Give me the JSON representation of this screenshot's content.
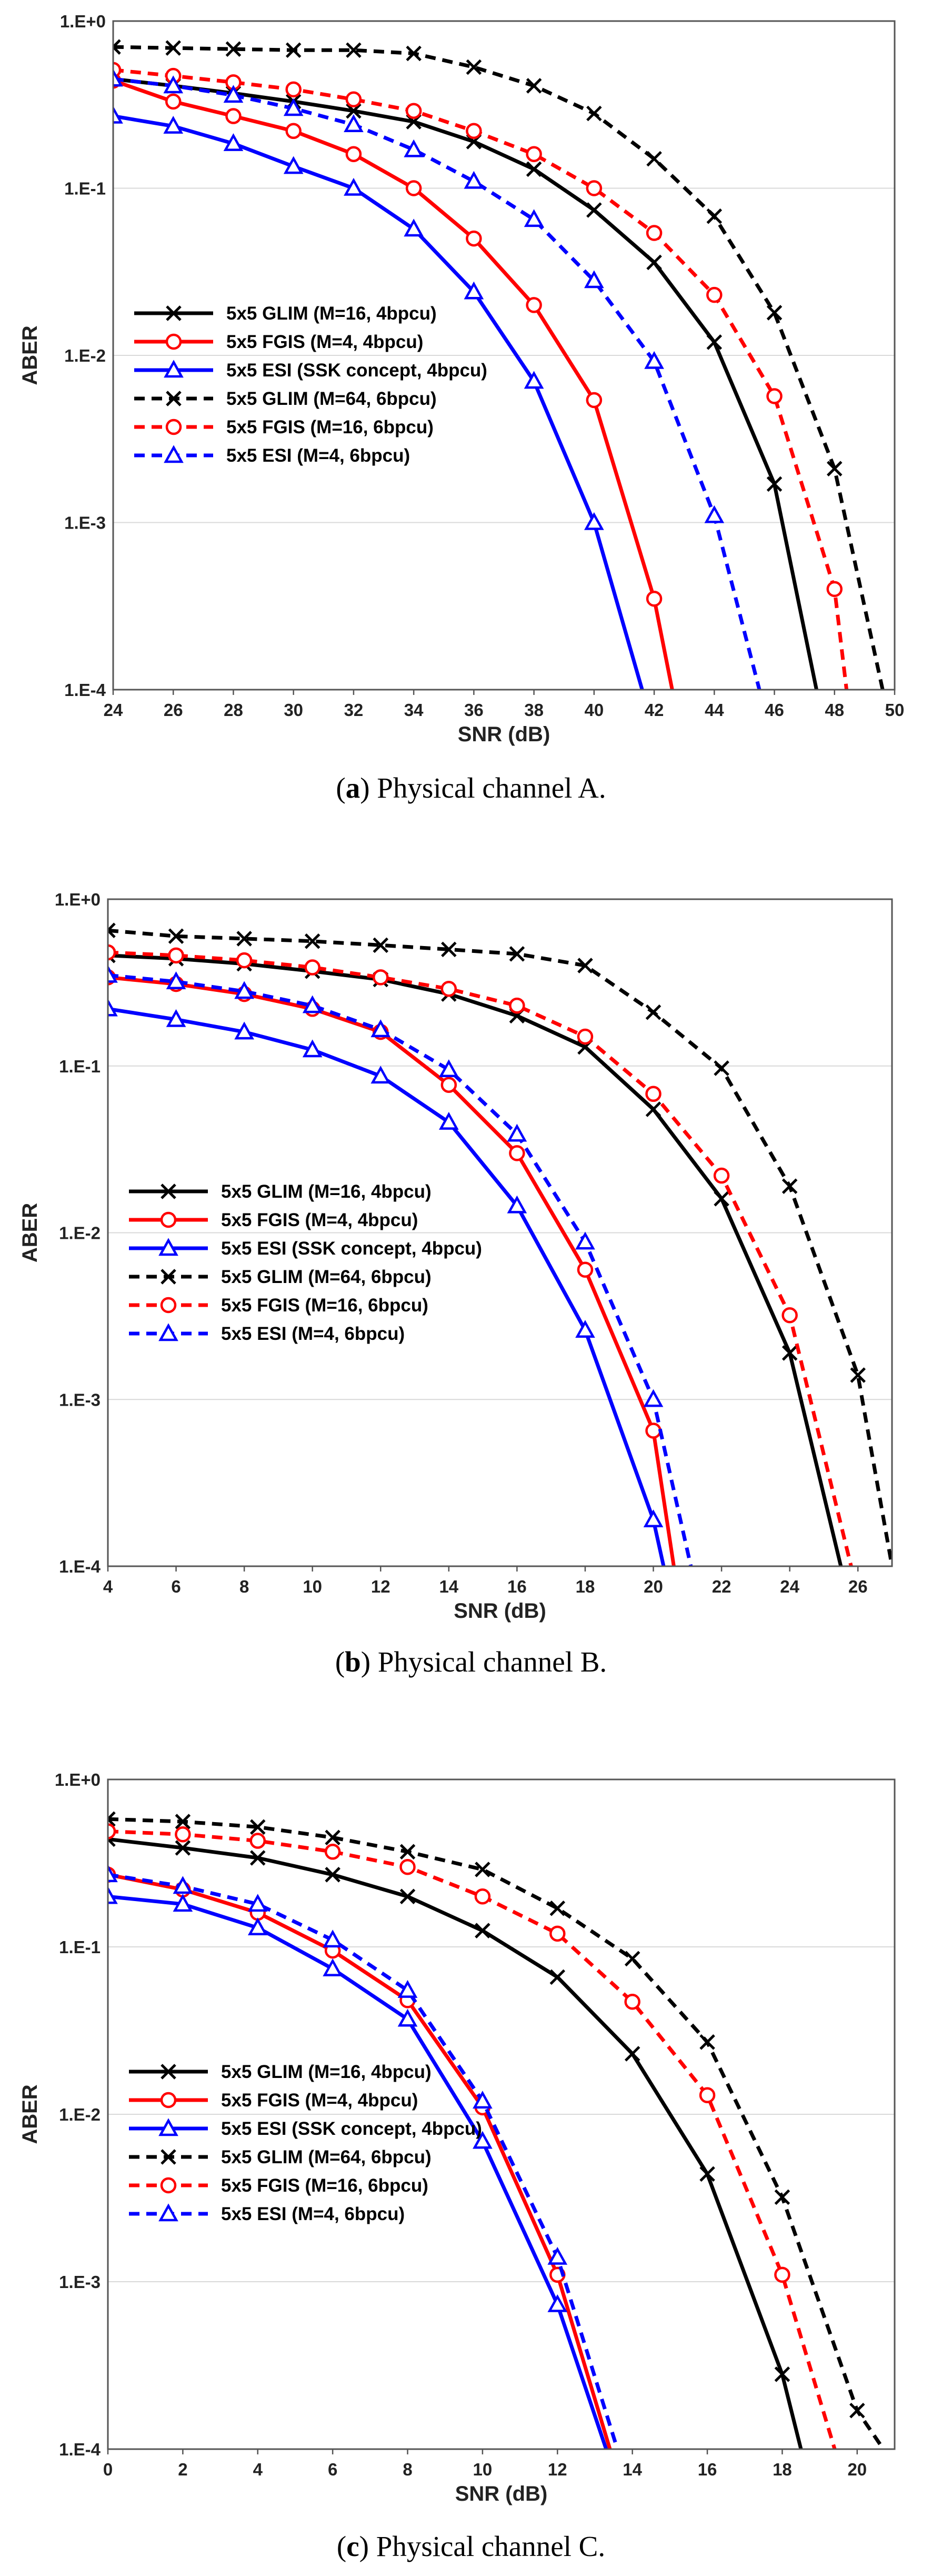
{
  "chart_data": [
    {
      "type": "line",
      "yscale": "log",
      "caption_letter": "a",
      "caption_text": "Physical channel A.",
      "xlabel": "SNR (dB)",
      "ylabel": "ABER",
      "xlim": [
        24,
        50
      ],
      "xticks": [
        24,
        26,
        28,
        30,
        32,
        34,
        36,
        38,
        40,
        42,
        44,
        46,
        48,
        50
      ],
      "ylim": [
        0.0001,
        1
      ],
      "yticks": [
        {
          "v": 1,
          "label": "1.E+0"
        },
        {
          "v": 0.1,
          "label": "1.E-1"
        },
        {
          "v": 0.01,
          "label": "1.E-2"
        },
        {
          "v": 0.001,
          "label": "1.E-3"
        },
        {
          "v": 0.0001,
          "label": "1.E-4"
        }
      ],
      "legend_position": "bottom-left",
      "series": [
        {
          "name": "5x5 GLIM  (M=16, 4bpcu)",
          "color": "#000000",
          "dash": false,
          "marker": "x",
          "points": [
            [
              24,
              0.45
            ],
            [
              26,
              0.41
            ],
            [
              28,
              0.37
            ],
            [
              30,
              0.33
            ],
            [
              32,
              0.29
            ],
            [
              34,
              0.25
            ],
            [
              36,
              0.19
            ],
            [
              38,
              0.13
            ],
            [
              40,
              0.074
            ],
            [
              42,
              0.036
            ],
            [
              44,
              0.012
            ],
            [
              46,
              0.0017
            ],
            [
              47.4,
              0.0001
            ]
          ]
        },
        {
          "name": "5x5 FGIS (M=4, 4bpcu)",
          "color": "#ff0000",
          "dash": false,
          "marker": "o",
          "points": [
            [
              24,
              0.44
            ],
            [
              26,
              0.33
            ],
            [
              28,
              0.27
            ],
            [
              30,
              0.22
            ],
            [
              32,
              0.16
            ],
            [
              34,
              0.1
            ],
            [
              36,
              0.05
            ],
            [
              38,
              0.02
            ],
            [
              40,
              0.0054
            ],
            [
              42,
              0.00035
            ],
            [
              42.6,
              0.0001
            ]
          ]
        },
        {
          "name": "5x5 ESI (SSK concept, 4bpcu)",
          "color": "#0000ff",
          "dash": false,
          "marker": "triangle",
          "points": [
            [
              24,
              0.27
            ],
            [
              26,
              0.235
            ],
            [
              28,
              0.185
            ],
            [
              30,
              0.135
            ],
            [
              32,
              0.1
            ],
            [
              34,
              0.057
            ],
            [
              36,
              0.024
            ],
            [
              38,
              0.007
            ],
            [
              40,
              0.001
            ],
            [
              41.6,
              0.0001
            ]
          ]
        },
        {
          "name": "5x5 GLIM  (M=64, 6bpcu)",
          "color": "#000000",
          "dash": true,
          "marker": "x",
          "points": [
            [
              24,
              0.7
            ],
            [
              26,
              0.69
            ],
            [
              28,
              0.68
            ],
            [
              30,
              0.67
            ],
            [
              32,
              0.67
            ],
            [
              34,
              0.64
            ],
            [
              36,
              0.53
            ],
            [
              38,
              0.41
            ],
            [
              40,
              0.28
            ],
            [
              42,
              0.15
            ],
            [
              44,
              0.068
            ],
            [
              46,
              0.018
            ],
            [
              48,
              0.0021
            ],
            [
              49.6,
              0.0001
            ]
          ]
        },
        {
          "name": "5x5 FGIS (M=16, 6bpcu)",
          "color": "#ff0000",
          "dash": true,
          "marker": "o",
          "points": [
            [
              24,
              0.51
            ],
            [
              26,
              0.47
            ],
            [
              28,
              0.43
            ],
            [
              30,
              0.39
            ],
            [
              32,
              0.34
            ],
            [
              34,
              0.29
            ],
            [
              36,
              0.22
            ],
            [
              38,
              0.16
            ],
            [
              40,
              0.1
            ],
            [
              42,
              0.054
            ],
            [
              44,
              0.023
            ],
            [
              46,
              0.0057
            ],
            [
              48,
              0.0004
            ],
            [
              48.4,
              0.0001
            ]
          ]
        },
        {
          "name": "5x5 ESI (M=4, 6bpcu)",
          "color": "#0000ff",
          "dash": true,
          "marker": "triangle",
          "points": [
            [
              24,
              0.45
            ],
            [
              26,
              0.41
            ],
            [
              28,
              0.36
            ],
            [
              30,
              0.3
            ],
            [
              32,
              0.24
            ],
            [
              34,
              0.17
            ],
            [
              36,
              0.11
            ],
            [
              38,
              0.065
            ],
            [
              40,
              0.028
            ],
            [
              42,
              0.0092
            ],
            [
              44,
              0.0011
            ],
            [
              45.5,
              0.0001
            ]
          ]
        }
      ]
    },
    {
      "type": "line",
      "yscale": "log",
      "caption_letter": "b",
      "caption_text": "Physical channel B.",
      "xlabel": "SNR (dB)",
      "ylabel": "ABER",
      "xlim": [
        4,
        27
      ],
      "xticks": [
        4,
        6,
        8,
        10,
        12,
        14,
        16,
        18,
        20,
        22,
        24,
        26
      ],
      "ylim": [
        0.0001,
        1
      ],
      "yticks": [
        {
          "v": 1,
          "label": "1.E+0"
        },
        {
          "v": 0.1,
          "label": "1.E-1"
        },
        {
          "v": 0.01,
          "label": "1.E-2"
        },
        {
          "v": 0.001,
          "label": "1.E-3"
        },
        {
          "v": 0.0001,
          "label": "1.E-4"
        }
      ],
      "legend_position": "bottom-left",
      "series": [
        {
          "name": "5x5 GLIM  (M=16, 4bpcu)",
          "color": "#000000",
          "dash": false,
          "marker": "x",
          "points": [
            [
              4,
              0.46
            ],
            [
              6,
              0.44
            ],
            [
              8,
              0.41
            ],
            [
              10,
              0.37
            ],
            [
              12,
              0.33
            ],
            [
              14,
              0.27
            ],
            [
              16,
              0.2
            ],
            [
              18,
              0.13
            ],
            [
              20,
              0.055
            ],
            [
              22,
              0.016
            ],
            [
              24,
              0.0019
            ],
            [
              25.5,
              0.0001
            ]
          ]
        },
        {
          "name": "5x5 FGIS (M=4, 4bpcu)",
          "color": "#ff0000",
          "dash": false,
          "marker": "o",
          "points": [
            [
              4,
              0.34
            ],
            [
              6,
              0.31
            ],
            [
              8,
              0.27
            ],
            [
              10,
              0.22
            ],
            [
              12,
              0.16
            ],
            [
              14,
              0.077
            ],
            [
              16,
              0.03
            ],
            [
              18,
              0.006
            ],
            [
              20,
              0.00065
            ],
            [
              20.6,
              0.0001
            ]
          ]
        },
        {
          "name": "5x5 ESI (SSK concept, 4bpcu)",
          "color": "#0000ff",
          "dash": false,
          "marker": "triangle",
          "points": [
            [
              4,
              0.22
            ],
            [
              6,
              0.19
            ],
            [
              8,
              0.16
            ],
            [
              10,
              0.125
            ],
            [
              12,
              0.087
            ],
            [
              14,
              0.046
            ],
            [
              16,
              0.0145
            ],
            [
              18,
              0.0026
            ],
            [
              20,
              0.00019
            ],
            [
              20.3,
              0.0001
            ]
          ]
        },
        {
          "name": "5x5 GLIM  (M=64, 6bpcu)",
          "color": "#000000",
          "dash": true,
          "marker": "x",
          "points": [
            [
              4,
              0.65
            ],
            [
              6,
              0.6
            ],
            [
              8,
              0.58
            ],
            [
              10,
              0.56
            ],
            [
              12,
              0.53
            ],
            [
              14,
              0.5
            ],
            [
              16,
              0.47
            ],
            [
              18,
              0.4
            ],
            [
              20,
              0.21
            ],
            [
              22,
              0.097
            ],
            [
              24,
              0.019
            ],
            [
              26,
              0.0014
            ],
            [
              27,
              0.0001
            ]
          ]
        },
        {
          "name": "5x5 FGIS (M=16, 6bpcu)",
          "color": "#ff0000",
          "dash": true,
          "marker": "o",
          "points": [
            [
              4,
              0.48
            ],
            [
              6,
              0.46
            ],
            [
              8,
              0.43
            ],
            [
              10,
              0.39
            ],
            [
              12,
              0.34
            ],
            [
              14,
              0.29
            ],
            [
              16,
              0.23
            ],
            [
              18,
              0.15
            ],
            [
              20,
              0.068
            ],
            [
              22,
              0.022
            ],
            [
              24,
              0.0032
            ],
            [
              25.8,
              0.0001
            ]
          ]
        },
        {
          "name": "5x5 ESI (M=4, 6bpcu)",
          "color": "#0000ff",
          "dash": true,
          "marker": "triangle",
          "points": [
            [
              4,
              0.35
            ],
            [
              6,
              0.32
            ],
            [
              8,
              0.28
            ],
            [
              10,
              0.23
            ],
            [
              12,
              0.165
            ],
            [
              14,
              0.095
            ],
            [
              16,
              0.039
            ],
            [
              18,
              0.0088
            ],
            [
              20,
              0.001
            ],
            [
              21.1,
              0.0001
            ]
          ]
        }
      ]
    },
    {
      "type": "line",
      "yscale": "log",
      "caption_letter": "c",
      "caption_text": "Physical channel C.",
      "xlabel": "SNR (dB)",
      "ylabel": "ABER",
      "xlim": [
        0,
        21
      ],
      "xticks": [
        0,
        2,
        4,
        6,
        8,
        10,
        12,
        14,
        16,
        18,
        20
      ],
      "ylim": [
        0.0001,
        1
      ],
      "yticks": [
        {
          "v": 1,
          "label": "1.E+0"
        },
        {
          "v": 0.1,
          "label": "1.E-1"
        },
        {
          "v": 0.01,
          "label": "1.E-2"
        },
        {
          "v": 0.001,
          "label": "1.E-3"
        },
        {
          "v": 0.0001,
          "label": "1.E-4"
        }
      ],
      "legend_position": "bottom-left",
      "series": [
        {
          "name": "5x5 GLIM  (M=16, 4bpcu)",
          "color": "#000000",
          "dash": false,
          "marker": "x",
          "points": [
            [
              0,
              0.44
            ],
            [
              2,
              0.39
            ],
            [
              4,
              0.34
            ],
            [
              6,
              0.27
            ],
            [
              8,
              0.2
            ],
            [
              10,
              0.125
            ],
            [
              12,
              0.066
            ],
            [
              14,
              0.023
            ],
            [
              16,
              0.0044
            ],
            [
              18,
              0.00028
            ],
            [
              18.5,
              0.0001
            ]
          ]
        },
        {
          "name": "5x5 FGIS (M=4, 4bpcu)",
          "color": "#ff0000",
          "dash": false,
          "marker": "o",
          "points": [
            [
              0,
              0.27
            ],
            [
              2,
              0.22
            ],
            [
              4,
              0.16
            ],
            [
              6,
              0.095
            ],
            [
              8,
              0.048
            ],
            [
              10,
              0.011
            ],
            [
              12,
              0.0011
            ],
            [
              13.4,
              0.0001
            ]
          ]
        },
        {
          "name": "5x5 ESI (SSK concept, 4bpcu)",
          "color": "#0000ff",
          "dash": false,
          "marker": "triangle",
          "points": [
            [
              0,
              0.2
            ],
            [
              2,
              0.18
            ],
            [
              4,
              0.13
            ],
            [
              6,
              0.074
            ],
            [
              8,
              0.037
            ],
            [
              10,
              0.0069
            ],
            [
              12,
              0.00073
            ],
            [
              13.3,
              0.0001
            ]
          ]
        },
        {
          "name": "5x5 GLIM  (M=64, 6bpcu)",
          "color": "#000000",
          "dash": true,
          "marker": "x",
          "points": [
            [
              0,
              0.58
            ],
            [
              2,
              0.56
            ],
            [
              4,
              0.52
            ],
            [
              6,
              0.45
            ],
            [
              8,
              0.37
            ],
            [
              10,
              0.29
            ],
            [
              12,
              0.17
            ],
            [
              14,
              0.085
            ],
            [
              16,
              0.027
            ],
            [
              18,
              0.0032
            ],
            [
              20,
              0.00017
            ],
            [
              20.7,
              0.0001
            ]
          ]
        },
        {
          "name": "5x5 FGIS (M=16, 6bpcu)",
          "color": "#ff0000",
          "dash": true,
          "marker": "o",
          "points": [
            [
              0,
              0.49
            ],
            [
              2,
              0.47
            ],
            [
              4,
              0.43
            ],
            [
              6,
              0.37
            ],
            [
              8,
              0.3
            ],
            [
              10,
              0.2
            ],
            [
              12,
              0.12
            ],
            [
              14,
              0.047
            ],
            [
              16,
              0.013
            ],
            [
              18,
              0.0011
            ],
            [
              19.4,
              0.0001
            ]
          ]
        },
        {
          "name": "5x5 ESI (M=4, 6bpcu)",
          "color": "#0000ff",
          "dash": true,
          "marker": "triangle",
          "points": [
            [
              0,
              0.27
            ],
            [
              2,
              0.23
            ],
            [
              4,
              0.18
            ],
            [
              6,
              0.11
            ],
            [
              8,
              0.055
            ],
            [
              10,
              0.012
            ],
            [
              12,
              0.0014
            ],
            [
              13.6,
              0.0001
            ]
          ]
        }
      ]
    }
  ]
}
